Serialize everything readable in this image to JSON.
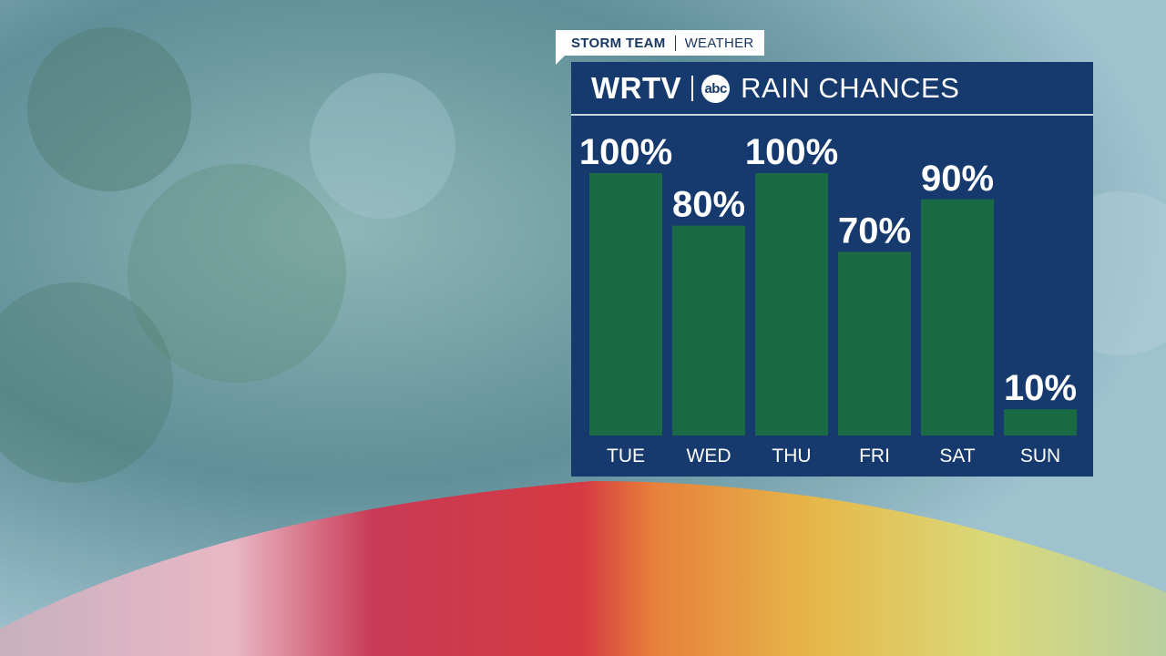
{
  "tag": {
    "left": "STORM TEAM",
    "right": "WEATHER"
  },
  "header": {
    "logo": "WRTV",
    "network": "abc",
    "title": "RAIN CHANCES"
  },
  "colors": {
    "panel": "#163a6e",
    "bar": "#1a6b45",
    "text": "#ffffff"
  },
  "chart_data": {
    "type": "bar",
    "title": "RAIN CHANCES",
    "categories": [
      "TUE",
      "WED",
      "THU",
      "FRI",
      "SAT",
      "SUN"
    ],
    "values": [
      100,
      80,
      100,
      70,
      90,
      10
    ],
    "value_labels": [
      "100%",
      "80%",
      "100%",
      "70%",
      "90%",
      "10%"
    ],
    "ylim": [
      0,
      100
    ],
    "grid": false,
    "legend": "none"
  }
}
